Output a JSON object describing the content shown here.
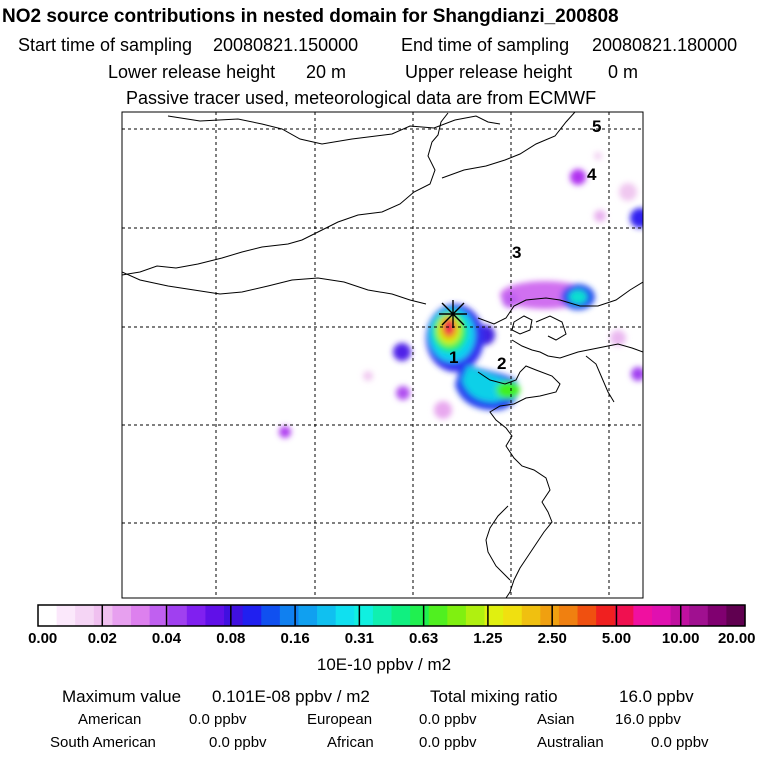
{
  "chart_data": {
    "type": "heatmap",
    "title": "NO2 source contributions in nested domain for Shangdianzi_200808",
    "start_label": "Start time of sampling",
    "start_value": "20080821.150000",
    "end_label": "End time of sampling",
    "end_value": "20080821.180000",
    "lower_label": "Lower release height",
    "lower_value": "20 m",
    "upper_label": "Upper release height",
    "upper_value": "0 m",
    "note": "Passive tracer used, meteorological data are from ECMWF",
    "trajectory_markers": [
      "1",
      "2",
      "3",
      "4",
      "5"
    ],
    "colorbar": {
      "ticks": [
        "0.00",
        "0.02",
        "0.04",
        "0.08",
        "0.16",
        "0.31",
        "0.63",
        "1.25",
        "2.50",
        "5.00",
        "10.00",
        "20.00"
      ],
      "colors": [
        "#ffffff",
        "#fbe8fb",
        "#f5d5f5",
        "#f0c0f0",
        "#e7a0ef",
        "#dd80ee",
        "#c060f0",
        "#a040f0",
        "#8020f0",
        "#6010e8",
        "#4010e0",
        "#2020f0",
        "#1050f0",
        "#1080f0",
        "#10a0f0",
        "#10c0f0",
        "#10e0f0",
        "#10f0e0",
        "#10f0b0",
        "#10f080",
        "#20f050",
        "#50f020",
        "#80f010",
        "#b0f010",
        "#e0f010",
        "#f0e010",
        "#f0c010",
        "#f0a010",
        "#f08010",
        "#f05010",
        "#f02020",
        "#f01050",
        "#f010a0",
        "#e010b0",
        "#c010a0",
        "#a01090",
        "#800070",
        "#600050"
      ],
      "units": "10E-10 ppbv / m2"
    },
    "stats": {
      "max_label": "Maximum value",
      "max_value": "0.101E-08 ppbv / m2",
      "total_label": "Total mixing ratio",
      "total_value": "16.0 ppbv",
      "regions": [
        {
          "name": "American",
          "value": "0.0 ppbv"
        },
        {
          "name": "European",
          "value": "0.0 ppbv"
        },
        {
          "name": "Asian",
          "value": "16.0 ppbv"
        },
        {
          "name": "South American",
          "value": "0.0 ppbv"
        },
        {
          "name": "African",
          "value": "0.0 ppbv"
        },
        {
          "name": "Australian",
          "value": "0.0 ppbv"
        }
      ]
    }
  }
}
